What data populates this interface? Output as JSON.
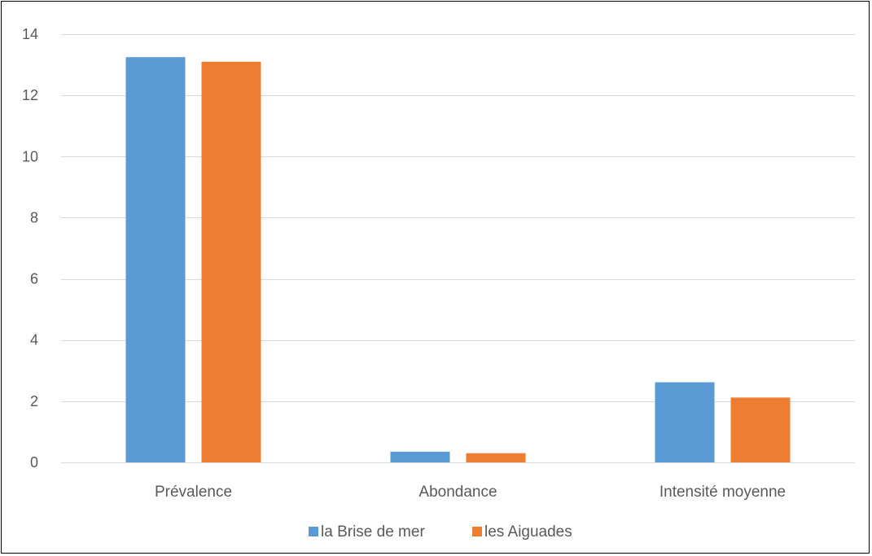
{
  "chart_data": {
    "type": "bar",
    "title": "",
    "xlabel": "",
    "ylabel": "",
    "categories": [
      "Prévalence",
      "Abondance",
      "Intensité moyenne"
    ],
    "series": [
      {
        "name": "la Brise de mer",
        "color": "#5B9BD5",
        "values": [
          13.25,
          0.35,
          2.62
        ]
      },
      {
        "name": "les Aiguades",
        "color": "#ED7D31",
        "values": [
          13.1,
          0.3,
          2.12
        ]
      }
    ],
    "ylim": [
      0,
      14
    ],
    "yticks": [
      0,
      2,
      4,
      6,
      8,
      10,
      12,
      14
    ],
    "grid": true,
    "legend": "bottom"
  }
}
